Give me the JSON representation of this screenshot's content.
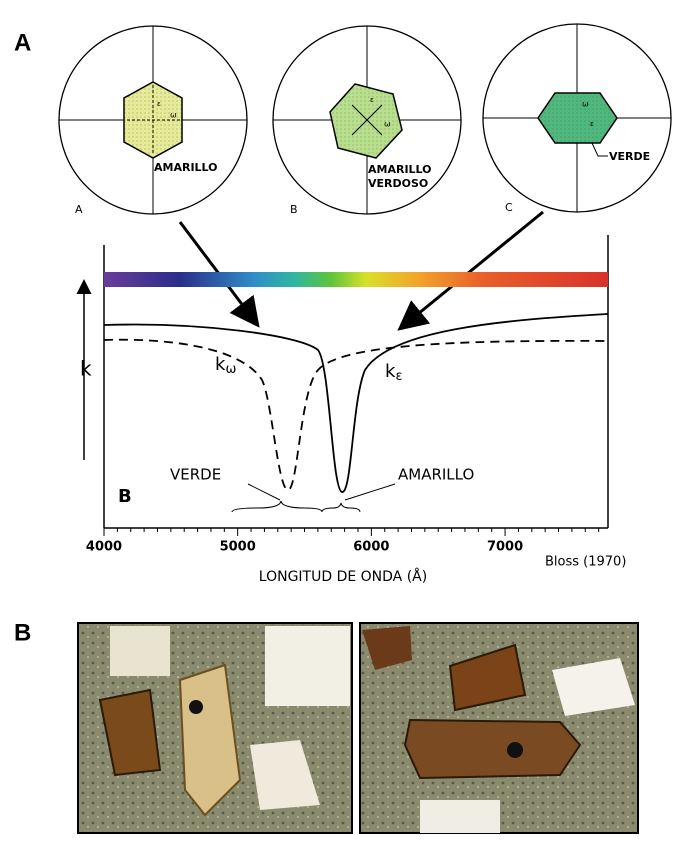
{
  "panel_a": {
    "label": "A",
    "circles": [
      {
        "letter": "A",
        "symbols": [
          "ε",
          "ω"
        ],
        "label_lines": [
          "AMARILLO"
        ]
      },
      {
        "letter": "B",
        "symbols": [
          "ε",
          "ω"
        ],
        "label_lines": [
          "AMARILLO",
          "VERDOSO"
        ]
      },
      {
        "letter": "C",
        "symbols": [
          "ω",
          "ε"
        ],
        "label_lines": [
          "VERDE"
        ]
      }
    ]
  },
  "chart_data": {
    "type": "absorption",
    "panel_letter": "B",
    "y_label": "k",
    "k_omega": {
      "base": "k",
      "sub": "ω"
    },
    "k_epsilon": {
      "base": "k",
      "sub": "ε"
    },
    "band_labels": [
      "VERDE",
      "AMARILLO"
    ],
    "x_label": "LONGITUD DE ONDA (Å)",
    "xlim": [
      4000,
      7770
    ],
    "xticks": [
      4000,
      5000,
      6000,
      7000
    ]
  },
  "credit": "Bloss (1970)",
  "panel_b": {
    "label": "B"
  }
}
